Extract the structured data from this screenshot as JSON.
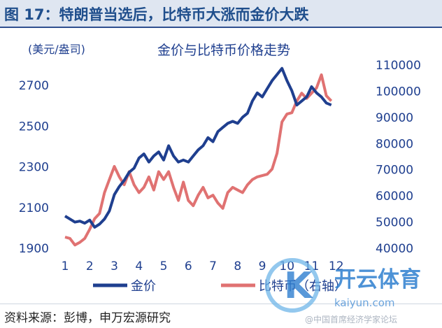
{
  "figure_title": "图 17：特朗普当选后，比特币大涨而金价大跌",
  "source_note": "资料来源：彭博，申万宏源研究",
  "watermark": {
    "brand": "开云体育",
    "site": "kaiyun.com",
    "letter": "K",
    "faint_text": "@中国首席经济学家论坛"
  },
  "chart_data": {
    "type": "line",
    "title": "金价与比特币价格走势",
    "y_left_unit": "(美元/盎司)",
    "y_left": {
      "range": [
        1900,
        2800
      ],
      "ticks": [
        1900,
        2100,
        2300,
        2500,
        2700
      ]
    },
    "y_right": {
      "range": [
        40000,
        110000
      ],
      "ticks": [
        40000,
        50000,
        60000,
        70000,
        80000,
        90000,
        100000,
        110000
      ]
    },
    "x": {
      "range": [
        1,
        13
      ],
      "ticks": [
        "1",
        "2",
        "3",
        "4",
        "5",
        "6",
        "7",
        "8",
        "9",
        "10",
        "11",
        "12"
      ]
    },
    "series": [
      {
        "name": "金价",
        "axis": "left",
        "color": "#1f3f8f",
        "points": [
          [
            1.0,
            2055
          ],
          [
            1.2,
            2040
          ],
          [
            1.4,
            2025
          ],
          [
            1.6,
            2030
          ],
          [
            1.8,
            2020
          ],
          [
            2.0,
            2035
          ],
          [
            2.2,
            2000
          ],
          [
            2.4,
            2015
          ],
          [
            2.6,
            2040
          ],
          [
            2.8,
            2080
          ],
          [
            3.0,
            2160
          ],
          [
            3.2,
            2200
          ],
          [
            3.4,
            2230
          ],
          [
            3.6,
            2270
          ],
          [
            3.8,
            2290
          ],
          [
            4.0,
            2340
          ],
          [
            4.2,
            2360
          ],
          [
            4.4,
            2320
          ],
          [
            4.6,
            2350
          ],
          [
            4.8,
            2370
          ],
          [
            5.0,
            2330
          ],
          [
            5.2,
            2400
          ],
          [
            5.4,
            2350
          ],
          [
            5.6,
            2320
          ],
          [
            5.8,
            2330
          ],
          [
            6.0,
            2320
          ],
          [
            6.2,
            2350
          ],
          [
            6.4,
            2380
          ],
          [
            6.6,
            2400
          ],
          [
            6.8,
            2440
          ],
          [
            7.0,
            2420
          ],
          [
            7.2,
            2470
          ],
          [
            7.4,
            2490
          ],
          [
            7.6,
            2510
          ],
          [
            7.8,
            2520
          ],
          [
            8.0,
            2510
          ],
          [
            8.2,
            2540
          ],
          [
            8.4,
            2560
          ],
          [
            8.6,
            2620
          ],
          [
            8.8,
            2660
          ],
          [
            9.0,
            2640
          ],
          [
            9.2,
            2680
          ],
          [
            9.4,
            2720
          ],
          [
            9.6,
            2750
          ],
          [
            9.8,
            2780
          ],
          [
            10.0,
            2720
          ],
          [
            10.2,
            2670
          ],
          [
            10.4,
            2600
          ],
          [
            10.6,
            2620
          ],
          [
            10.8,
            2640
          ],
          [
            11.0,
            2690
          ],
          [
            11.2,
            2660
          ],
          [
            11.4,
            2640
          ],
          [
            11.6,
            2610
          ],
          [
            11.8,
            2600
          ]
        ]
      },
      {
        "name": "比特币（右轴）",
        "axis": "right",
        "color": "#e07272",
        "points": [
          [
            1.0,
            44000
          ],
          [
            1.2,
            43500
          ],
          [
            1.4,
            41000
          ],
          [
            1.6,
            42000
          ],
          [
            1.8,
            43500
          ],
          [
            2.0,
            47000
          ],
          [
            2.2,
            51000
          ],
          [
            2.4,
            53000
          ],
          [
            2.6,
            61000
          ],
          [
            2.8,
            66000
          ],
          [
            3.0,
            71000
          ],
          [
            3.2,
            67000
          ],
          [
            3.4,
            64000
          ],
          [
            3.6,
            69000
          ],
          [
            3.8,
            64000
          ],
          [
            4.0,
            61000
          ],
          [
            4.2,
            63000
          ],
          [
            4.4,
            67000
          ],
          [
            4.6,
            62000
          ],
          [
            4.8,
            69000
          ],
          [
            5.0,
            66000
          ],
          [
            5.2,
            69000
          ],
          [
            5.4,
            63000
          ],
          [
            5.6,
            58000
          ],
          [
            5.8,
            65000
          ],
          [
            6.0,
            58000
          ],
          [
            6.2,
            56000
          ],
          [
            6.4,
            60000
          ],
          [
            6.6,
            63000
          ],
          [
            6.8,
            59000
          ],
          [
            7.0,
            60000
          ],
          [
            7.2,
            57000
          ],
          [
            7.4,
            55000
          ],
          [
            7.6,
            61000
          ],
          [
            7.8,
            63000
          ],
          [
            8.0,
            62000
          ],
          [
            8.2,
            61000
          ],
          [
            8.4,
            64000
          ],
          [
            8.6,
            66000
          ],
          [
            8.8,
            67000
          ],
          [
            9.0,
            67500
          ],
          [
            9.2,
            68000
          ],
          [
            9.4,
            70000
          ],
          [
            9.6,
            76000
          ],
          [
            9.8,
            88000
          ],
          [
            10.0,
            91000
          ],
          [
            10.2,
            91500
          ],
          [
            10.4,
            96000
          ],
          [
            10.6,
            99000
          ],
          [
            10.8,
            97000
          ],
          [
            11.0,
            99000
          ],
          [
            11.2,
            101000
          ],
          [
            11.4,
            106000
          ],
          [
            11.6,
            98000
          ],
          [
            11.8,
            96000
          ]
        ]
      }
    ],
    "legend": {
      "position": "bottom",
      "entries": [
        "金价",
        "比特币（右轴）"
      ]
    }
  }
}
